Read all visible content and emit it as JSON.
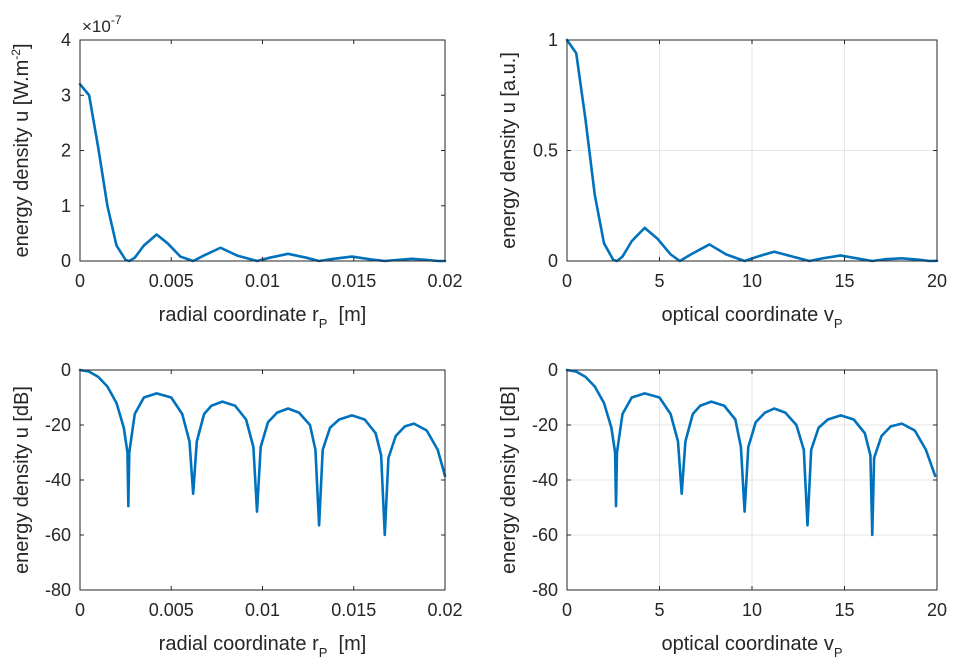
{
  "colors": {
    "line": "#0072BD",
    "axis": "#262626",
    "grid": "#e6e6e6"
  },
  "chart_data": [
    {
      "type": "line",
      "xlabel": "radial coordinate r",
      "xlabel_sub": "P",
      "xlabel_unit": "[m]",
      "ylabel": "energy density  u  [W.m",
      "ylabel_sup": "-2",
      "ylabel_close": "]",
      "exponent_base": "×10",
      "exponent_power": "-7",
      "xlim": [
        0,
        0.02
      ],
      "ylim": [
        0,
        4
      ],
      "xticks": [
        "0",
        "0.005",
        "0.01",
        "0.015",
        "0.02"
      ],
      "xtick_values": [
        0,
        0.005,
        0.01,
        0.015,
        0.02
      ],
      "yticks": [
        "0",
        "1",
        "2",
        "3",
        "4"
      ],
      "ytick_values": [
        0,
        1,
        2,
        3,
        4
      ],
      "grid": false,
      "series": [
        {
          "values": [
            [
              0,
              3.2
            ],
            [
              0.0005,
              3.0
            ],
            [
              0.001,
              2.05
            ],
            [
              0.0015,
              1.0
            ],
            [
              0.002,
              0.28
            ],
            [
              0.0025,
              0.02
            ],
            [
              0.0027,
              0.0
            ],
            [
              0.003,
              0.06
            ],
            [
              0.0035,
              0.28
            ],
            [
              0.0042,
              0.48
            ],
            [
              0.0048,
              0.32
            ],
            [
              0.0055,
              0.08
            ],
            [
              0.0062,
              0.0
            ],
            [
              0.0068,
              0.1
            ],
            [
              0.0077,
              0.24
            ],
            [
              0.0086,
              0.1
            ],
            [
              0.0097,
              0.0
            ],
            [
              0.0104,
              0.06
            ],
            [
              0.0114,
              0.13
            ],
            [
              0.0124,
              0.06
            ],
            [
              0.0131,
              0.0
            ],
            [
              0.0139,
              0.04
            ],
            [
              0.0149,
              0.08
            ],
            [
              0.0159,
              0.03
            ],
            [
              0.0167,
              0.0
            ],
            [
              0.0174,
              0.02
            ],
            [
              0.0182,
              0.04
            ],
            [
              0.019,
              0.02
            ],
            [
              0.0196,
              0.0
            ],
            [
              0.02,
              0.0
            ]
          ]
        }
      ]
    },
    {
      "type": "line",
      "xlabel": "optical coordinate  v",
      "xlabel_sub": "P",
      "xlabel_unit": "",
      "ylabel": "energy density  u  [a.u.]",
      "ylabel_sup": "",
      "ylabel_close": "",
      "exponent_base": "",
      "exponent_power": "",
      "xlim": [
        0,
        20
      ],
      "ylim": [
        0,
        1
      ],
      "xticks": [
        "0",
        "5",
        "10",
        "15",
        "20"
      ],
      "xtick_values": [
        0,
        5,
        10,
        15,
        20
      ],
      "yticks": [
        "0",
        "0.5",
        "1"
      ],
      "ytick_values": [
        0,
        0.5,
        1
      ],
      "grid": true,
      "series": [
        {
          "values": [
            [
              0,
              1.0
            ],
            [
              0.5,
              0.94
            ],
            [
              1.0,
              0.64
            ],
            [
              1.5,
              0.3
            ],
            [
              2.0,
              0.08
            ],
            [
              2.5,
              0.005
            ],
            [
              2.7,
              0.0
            ],
            [
              3.0,
              0.02
            ],
            [
              3.5,
              0.09
            ],
            [
              4.2,
              0.15
            ],
            [
              4.9,
              0.1
            ],
            [
              5.6,
              0.03
            ],
            [
              6.1,
              0.0
            ],
            [
              6.7,
              0.03
            ],
            [
              7.7,
              0.075
            ],
            [
              8.6,
              0.03
            ],
            [
              9.6,
              0.0
            ],
            [
              10.3,
              0.02
            ],
            [
              11.2,
              0.042
            ],
            [
              12.2,
              0.02
            ],
            [
              13.1,
              0.0
            ],
            [
              13.8,
              0.012
            ],
            [
              14.8,
              0.025
            ],
            [
              15.8,
              0.01
            ],
            [
              16.5,
              0.0
            ],
            [
              17.2,
              0.008
            ],
            [
              18.1,
              0.012
            ],
            [
              19.0,
              0.006
            ],
            [
              19.6,
              0.0
            ],
            [
              20.0,
              0.001
            ]
          ]
        }
      ]
    },
    {
      "type": "line",
      "xlabel": "radial coordinate  r",
      "xlabel_sub": "P",
      "xlabel_unit": "[m]",
      "ylabel": "energy density  u  [dB]",
      "ylabel_sup": "",
      "ylabel_close": "",
      "exponent_base": "",
      "exponent_power": "",
      "xlim": [
        0,
        0.02
      ],
      "ylim": [
        -80,
        0
      ],
      "xticks": [
        "0",
        "0.005",
        "0.01",
        "0.015",
        "0.02"
      ],
      "xtick_values": [
        0,
        0.005,
        0.01,
        0.015,
        0.02
      ],
      "yticks": [
        "-80",
        "-60",
        "-40",
        "-20",
        "0"
      ],
      "ytick_values": [
        -80,
        -60,
        -40,
        -20,
        0
      ],
      "grid": false,
      "series": [
        {
          "values": [
            [
              0,
              0
            ],
            [
              0.0005,
              -0.6
            ],
            [
              0.001,
              -2.5
            ],
            [
              0.0015,
              -6
            ],
            [
              0.002,
              -12
            ],
            [
              0.0024,
              -21
            ],
            [
              0.0026,
              -30
            ],
            [
              0.00265,
              -49.5
            ],
            [
              0.0027,
              -30
            ],
            [
              0.003,
              -16
            ],
            [
              0.0035,
              -10
            ],
            [
              0.0042,
              -8.5
            ],
            [
              0.005,
              -10
            ],
            [
              0.0056,
              -16
            ],
            [
              0.006,
              -26
            ],
            [
              0.0062,
              -45
            ],
            [
              0.0064,
              -26
            ],
            [
              0.0068,
              -16
            ],
            [
              0.0072,
              -13
            ],
            [
              0.0078,
              -11.5
            ],
            [
              0.0085,
              -13
            ],
            [
              0.0091,
              -18
            ],
            [
              0.0095,
              -28
            ],
            [
              0.0097,
              -51.5
            ],
            [
              0.0099,
              -28
            ],
            [
              0.0103,
              -19
            ],
            [
              0.0108,
              -15.5
            ],
            [
              0.0114,
              -14
            ],
            [
              0.012,
              -15.5
            ],
            [
              0.0126,
              -20
            ],
            [
              0.0129,
              -29
            ],
            [
              0.0131,
              -56.5
            ],
            [
              0.0133,
              -29
            ],
            [
              0.0137,
              -21
            ],
            [
              0.0142,
              -18
            ],
            [
              0.0149,
              -16.5
            ],
            [
              0.0156,
              -18
            ],
            [
              0.0162,
              -23
            ],
            [
              0.0165,
              -31
            ],
            [
              0.0167,
              -60
            ],
            [
              0.0169,
              -32
            ],
            [
              0.0173,
              -24
            ],
            [
              0.0178,
              -20.5
            ],
            [
              0.0183,
              -19.5
            ],
            [
              0.019,
              -22
            ],
            [
              0.0196,
              -29
            ],
            [
              0.02,
              -38.5
            ]
          ]
        }
      ]
    },
    {
      "type": "line",
      "xlabel": "optical coordinate  v",
      "xlabel_sub": "P",
      "xlabel_unit": "",
      "ylabel": "energy density  u  [dB]",
      "ylabel_sup": "",
      "ylabel_close": "",
      "exponent_base": "",
      "exponent_power": "",
      "xlim": [
        0,
        20
      ],
      "ylim": [
        -80,
        0
      ],
      "xticks": [
        "0",
        "5",
        "10",
        "15",
        "20"
      ],
      "xtick_values": [
        0,
        5,
        10,
        15,
        20
      ],
      "yticks": [
        "-80",
        "-60",
        "-40",
        "-20",
        "0"
      ],
      "ytick_values": [
        -80,
        -60,
        -40,
        -20,
        0
      ],
      "grid": true,
      "series": [
        {
          "values": [
            [
              0,
              0
            ],
            [
              0.5,
              -0.6
            ],
            [
              1.0,
              -2.5
            ],
            [
              1.5,
              -6
            ],
            [
              2.0,
              -12
            ],
            [
              2.4,
              -21
            ],
            [
              2.6,
              -30
            ],
            [
              2.65,
              -49.5
            ],
            [
              2.7,
              -30
            ],
            [
              3.0,
              -16
            ],
            [
              3.5,
              -10
            ],
            [
              4.2,
              -8.5
            ],
            [
              5.0,
              -10
            ],
            [
              5.6,
              -16
            ],
            [
              6.0,
              -26
            ],
            [
              6.2,
              -45
            ],
            [
              6.4,
              -26
            ],
            [
              6.8,
              -16
            ],
            [
              7.2,
              -13
            ],
            [
              7.8,
              -11.5
            ],
            [
              8.5,
              -13
            ],
            [
              9.1,
              -18
            ],
            [
              9.4,
              -28
            ],
            [
              9.6,
              -51.5
            ],
            [
              9.8,
              -28
            ],
            [
              10.2,
              -19
            ],
            [
              10.7,
              -15.5
            ],
            [
              11.2,
              -14
            ],
            [
              11.8,
              -15.5
            ],
            [
              12.4,
              -20
            ],
            [
              12.8,
              -29
            ],
            [
              13.0,
              -56.5
            ],
            [
              13.2,
              -29
            ],
            [
              13.6,
              -21
            ],
            [
              14.1,
              -18
            ],
            [
              14.8,
              -16.5
            ],
            [
              15.5,
              -18
            ],
            [
              16.1,
              -23
            ],
            [
              16.4,
              -31
            ],
            [
              16.5,
              -60
            ],
            [
              16.6,
              -32
            ],
            [
              17.0,
              -24
            ],
            [
              17.5,
              -20.5
            ],
            [
              18.1,
              -19.5
            ],
            [
              18.8,
              -22
            ],
            [
              19.4,
              -29
            ],
            [
              19.9,
              -38.5
            ]
          ]
        }
      ]
    }
  ]
}
